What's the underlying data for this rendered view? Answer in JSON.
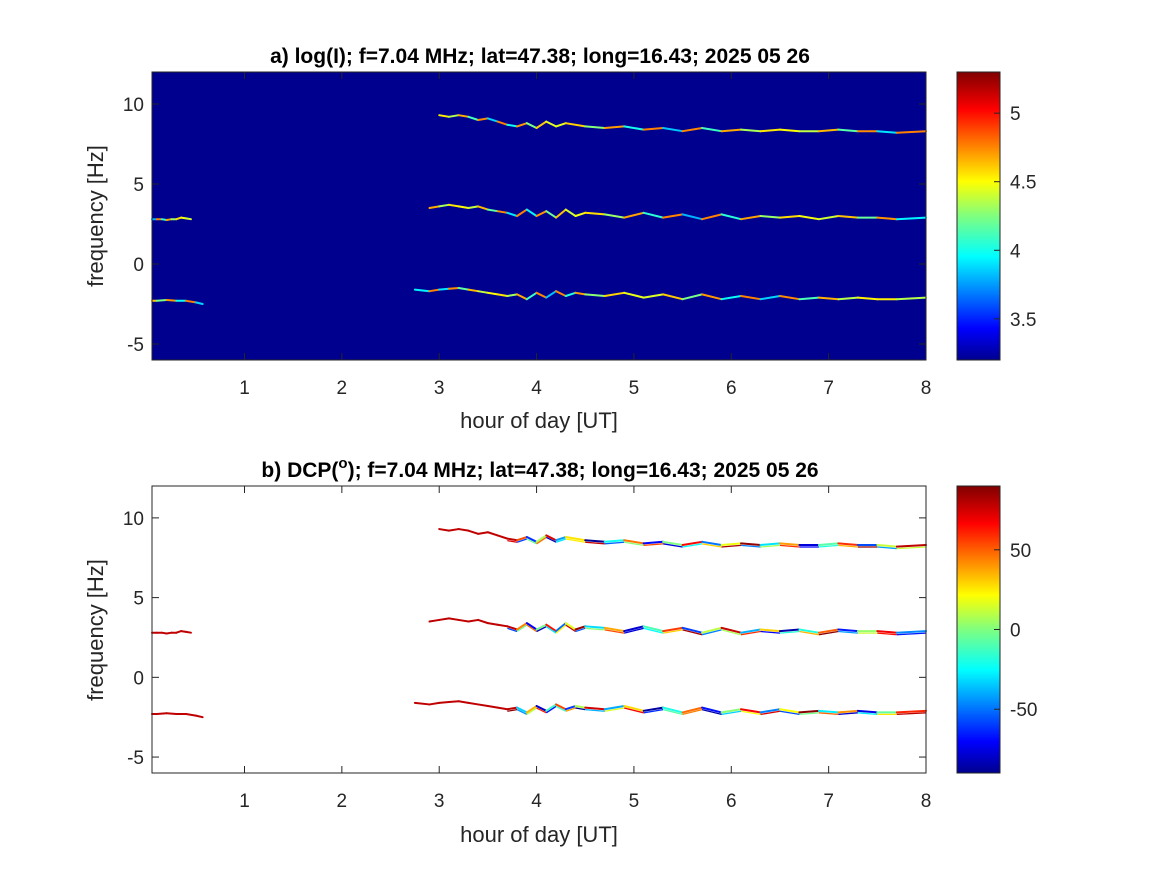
{
  "chart_data": [
    {
      "type": "heatmap",
      "title": "a) log(I); f=7.04 MHz;  lat=47.38; long=16.43; 2025 05 26",
      "xlabel": "hour of day [UT]",
      "ylabel": "frequency [Hz]",
      "xlim": [
        0.05,
        8
      ],
      "ylim": [
        -6,
        12
      ],
      "xticks": [
        "1",
        "2",
        "3",
        "4",
        "5",
        "6",
        "7",
        "8"
      ],
      "yticks": [
        "-5",
        "0",
        "5",
        "10"
      ],
      "background_color": "#00008f",
      "colormap": "jet",
      "colorbar": {
        "range": [
          3.2,
          5.3
        ],
        "ticks": [
          "3.5",
          "4",
          "4.5",
          "5"
        ]
      },
      "traces": [
        {
          "x": [
            0.05,
            0.1,
            0.15,
            0.2,
            0.25,
            0.3,
            0.35,
            0.4,
            0.45
          ],
          "y": [
            2.8,
            2.8,
            2.8,
            2.75,
            2.8,
            2.8,
            2.9,
            2.85,
            2.8
          ]
        },
        {
          "x": [
            0.05,
            0.1,
            0.2,
            0.3,
            0.4,
            0.5,
            0.57
          ],
          "y": [
            -2.3,
            -2.3,
            -2.25,
            -2.3,
            -2.3,
            -2.4,
            -2.5
          ]
        },
        {
          "x": [
            2.9,
            3.0,
            3.1,
            3.2,
            3.3,
            3.4,
            3.5,
            3.6,
            3.7,
            3.8,
            3.9,
            4.0,
            4.1,
            4.2,
            4.3,
            4.4,
            4.5,
            4.7,
            4.9,
            5.1,
            5.3,
            5.5,
            5.7,
            5.9,
            6.1,
            6.3,
            6.5,
            6.7,
            6.9,
            7.1,
            7.3,
            7.5,
            7.7,
            8.0
          ],
          "y": [
            3.5,
            3.6,
            3.7,
            3.6,
            3.5,
            3.6,
            3.4,
            3.3,
            3.2,
            3.0,
            3.4,
            3.0,
            3.3,
            2.9,
            3.4,
            3.0,
            3.2,
            3.1,
            2.9,
            3.2,
            2.9,
            3.1,
            2.8,
            3.1,
            2.8,
            3.0,
            2.9,
            3.0,
            2.8,
            3.0,
            2.9,
            2.9,
            2.8,
            2.9
          ]
        },
        {
          "x": [
            2.75,
            2.9,
            3.0,
            3.1,
            3.2,
            3.3,
            3.4,
            3.5,
            3.6,
            3.7,
            3.8,
            3.9,
            4.0,
            4.1,
            4.2,
            4.3,
            4.4,
            4.5,
            4.7,
            4.9,
            5.1,
            5.3,
            5.5,
            5.7,
            5.9,
            6.1,
            6.3,
            6.5,
            6.7,
            6.9,
            7.1,
            7.3,
            7.5,
            7.7,
            8.0
          ],
          "y": [
            -1.6,
            -1.7,
            -1.6,
            -1.55,
            -1.5,
            -1.6,
            -1.7,
            -1.8,
            -1.9,
            -2.0,
            -1.9,
            -2.2,
            -1.8,
            -2.1,
            -1.7,
            -2.0,
            -1.8,
            -1.9,
            -2.0,
            -1.8,
            -2.1,
            -1.9,
            -2.2,
            -1.9,
            -2.2,
            -2.0,
            -2.2,
            -2.0,
            -2.2,
            -2.1,
            -2.2,
            -2.1,
            -2.2,
            -2.2,
            -2.1
          ]
        },
        {
          "x": [
            3.0,
            3.1,
            3.2,
            3.3,
            3.4,
            3.5,
            3.6,
            3.7,
            3.8,
            3.9,
            4.0,
            4.1,
            4.2,
            4.3,
            4.5,
            4.7,
            4.9,
            5.1,
            5.3,
            5.5,
            5.7,
            5.9,
            6.1,
            6.3,
            6.5,
            6.7,
            6.9,
            7.1,
            7.3,
            7.5,
            7.7,
            8.0
          ],
          "y": [
            9.3,
            9.2,
            9.3,
            9.2,
            9.0,
            9.1,
            8.9,
            8.7,
            8.6,
            8.8,
            8.5,
            8.9,
            8.6,
            8.8,
            8.6,
            8.5,
            8.6,
            8.4,
            8.5,
            8.3,
            8.5,
            8.3,
            8.4,
            8.3,
            8.4,
            8.3,
            8.3,
            8.4,
            8.3,
            8.3,
            8.2,
            8.3
          ]
        }
      ]
    },
    {
      "type": "heatmap",
      "title_prefix": "b) DCP(",
      "title_superscript": "o",
      "title_suffix": "); f=7.04 MHz;  lat=47.38; long=16.43; 2025 05 26",
      "xlabel": "hour of day [UT]",
      "ylabel": "frequency [Hz]",
      "xlim": [
        0.05,
        8
      ],
      "ylim": [
        -6,
        12
      ],
      "xticks": [
        "1",
        "2",
        "3",
        "4",
        "5",
        "6",
        "7",
        "8"
      ],
      "yticks": [
        "-5",
        "0",
        "5",
        "10"
      ],
      "background_color": "#ffffff",
      "colormap": "jet",
      "colorbar": {
        "range": [
          -90,
          90
        ],
        "ticks": [
          "-50",
          "0",
          "50"
        ]
      },
      "traces": [
        {
          "x": [
            0.05,
            0.1,
            0.15,
            0.2,
            0.25,
            0.3,
            0.35,
            0.4,
            0.45
          ],
          "y": [
            2.8,
            2.8,
            2.8,
            2.75,
            2.8,
            2.8,
            2.9,
            2.85,
            2.8
          ]
        },
        {
          "x": [
            0.05,
            0.1,
            0.2,
            0.3,
            0.4,
            0.5,
            0.57
          ],
          "y": [
            -2.3,
            -2.3,
            -2.25,
            -2.3,
            -2.3,
            -2.4,
            -2.5
          ]
        },
        {
          "x": [
            2.9,
            3.0,
            3.1,
            3.2,
            3.3,
            3.4,
            3.5,
            3.6,
            3.7,
            3.8,
            3.9,
            4.0,
            4.1,
            4.2,
            4.3,
            4.4,
            4.5,
            4.7,
            4.9,
            5.1,
            5.3,
            5.5,
            5.7,
            5.9,
            6.1,
            6.3,
            6.5,
            6.7,
            6.9,
            7.1,
            7.3,
            7.5,
            7.7,
            8.0
          ],
          "y": [
            3.5,
            3.6,
            3.7,
            3.6,
            3.5,
            3.6,
            3.4,
            3.3,
            3.2,
            3.0,
            3.4,
            3.0,
            3.3,
            2.9,
            3.4,
            3.0,
            3.2,
            3.1,
            2.9,
            3.2,
            2.9,
            3.1,
            2.8,
            3.1,
            2.8,
            3.0,
            2.9,
            3.0,
            2.8,
            3.0,
            2.9,
            2.9,
            2.8,
            2.9
          ]
        },
        {
          "x": [
            2.75,
            2.9,
            3.0,
            3.1,
            3.2,
            3.3,
            3.4,
            3.5,
            3.6,
            3.7,
            3.8,
            3.9,
            4.0,
            4.1,
            4.2,
            4.3,
            4.4,
            4.5,
            4.7,
            4.9,
            5.1,
            5.3,
            5.5,
            5.7,
            5.9,
            6.1,
            6.3,
            6.5,
            6.7,
            6.9,
            7.1,
            7.3,
            7.5,
            7.7,
            8.0
          ],
          "y": [
            -1.6,
            -1.7,
            -1.6,
            -1.55,
            -1.5,
            -1.6,
            -1.7,
            -1.8,
            -1.9,
            -2.0,
            -1.9,
            -2.2,
            -1.8,
            -2.1,
            -1.7,
            -2.0,
            -1.8,
            -1.9,
            -2.0,
            -1.8,
            -2.1,
            -1.9,
            -2.2,
            -1.9,
            -2.2,
            -2.0,
            -2.2,
            -2.0,
            -2.2,
            -2.1,
            -2.2,
            -2.1,
            -2.2,
            -2.2,
            -2.1
          ]
        },
        {
          "x": [
            3.0,
            3.1,
            3.2,
            3.3,
            3.4,
            3.5,
            3.6,
            3.7,
            3.8,
            3.9,
            4.0,
            4.1,
            4.2,
            4.3,
            4.5,
            4.7,
            4.9,
            5.1,
            5.3,
            5.5,
            5.7,
            5.9,
            6.1,
            6.3,
            6.5,
            6.7,
            6.9,
            7.1,
            7.3,
            7.5,
            7.7,
            8.0
          ],
          "y": [
            9.3,
            9.2,
            9.3,
            9.2,
            9.0,
            9.1,
            8.9,
            8.7,
            8.6,
            8.8,
            8.5,
            8.9,
            8.6,
            8.8,
            8.6,
            8.5,
            8.6,
            8.4,
            8.5,
            8.3,
            8.5,
            8.3,
            8.4,
            8.3,
            8.4,
            8.3,
            8.3,
            8.4,
            8.3,
            8.3,
            8.2,
            8.3
          ]
        }
      ]
    }
  ]
}
